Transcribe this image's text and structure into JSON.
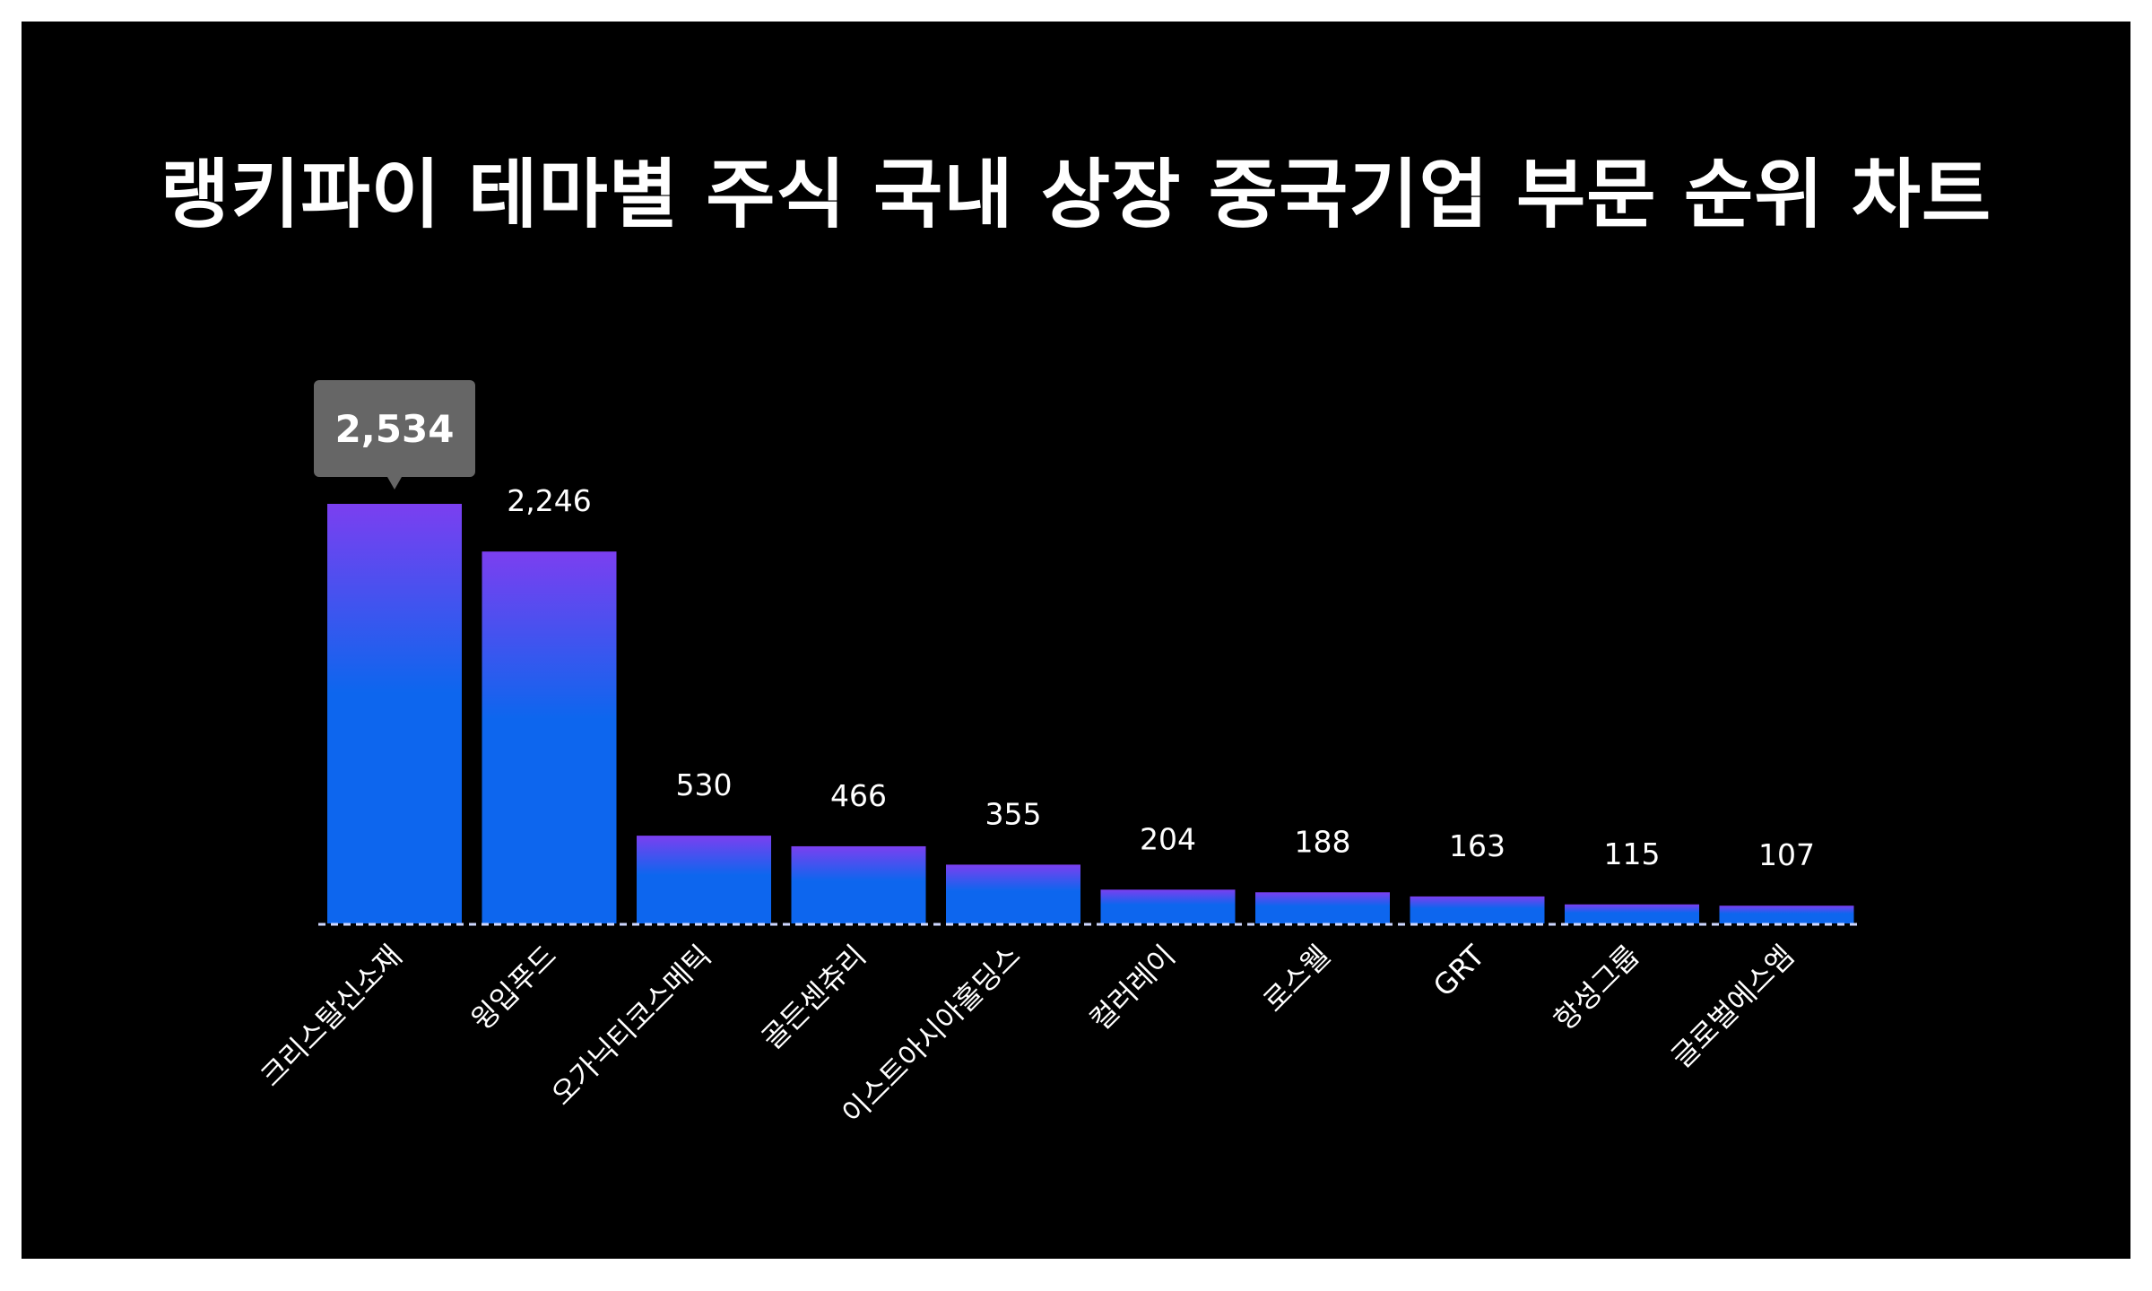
{
  "chart_data": {
    "type": "bar",
    "title": "랭키파이 테마별 주식 국내 상장 중국기업 부문 순위 차트",
    "categories": [
      "크리스탈신소재",
      "윙입푸드",
      "오가닉티코스메틱",
      "골든센츄리",
      "이스트아시아홀딩스",
      "컬러레이",
      "로스웰",
      "GRT",
      "항성그룹",
      "글로벌에스엠"
    ],
    "values": [
      2534,
      2246,
      530,
      466,
      355,
      204,
      188,
      163,
      115,
      107
    ],
    "value_labels": [
      "2,534",
      "2,246",
      "530",
      "466",
      "355",
      "204",
      "188",
      "163",
      "115",
      "107"
    ],
    "highlighted_index": 0,
    "xlabel": "",
    "ylabel": "",
    "ylim": [
      0,
      2534
    ],
    "grid": false,
    "legend": "none",
    "colors": {
      "background": "#000000",
      "bar_top": "#7b3ff0",
      "bar_bottom": "#0d66ee",
      "tooltip": "#666666",
      "text": "#ffffff",
      "baseline": "#cfd8ff"
    }
  }
}
